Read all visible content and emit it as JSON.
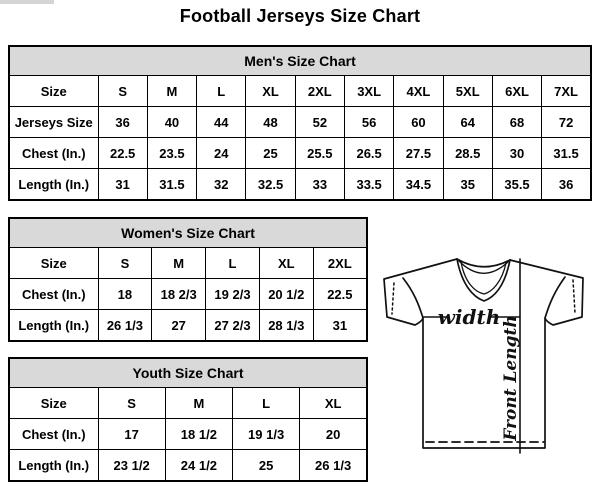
{
  "title": "Football Jerseys Size Chart",
  "tables": {
    "men": {
      "title": "Men's Size Chart",
      "rows": [
        [
          "Size",
          "S",
          "M",
          "L",
          "XL",
          "2XL",
          "3XL",
          "4XL",
          "5XL",
          "6XL",
          "7XL"
        ],
        [
          "Jerseys Size",
          "36",
          "40",
          "44",
          "48",
          "52",
          "56",
          "60",
          "64",
          "68",
          "72"
        ],
        [
          "Chest (In.)",
          "22.5",
          "23.5",
          "24",
          "25",
          "25.5",
          "26.5",
          "27.5",
          "28.5",
          "30",
          "31.5"
        ],
        [
          "Length (In.)",
          "31",
          "31.5",
          "32",
          "32.5",
          "33",
          "33.5",
          "34.5",
          "35",
          "35.5",
          "36"
        ]
      ]
    },
    "women": {
      "title": "Women's Size Chart",
      "rows": [
        [
          "Size",
          "S",
          "M",
          "L",
          "XL",
          "2XL"
        ],
        [
          "Chest (In.)",
          "18",
          "18 2/3",
          "19 2/3",
          "20 1/2",
          "22.5"
        ],
        [
          "Length (In.)",
          "26 1/3",
          "27",
          "27 2/3",
          "28 1/3",
          "31"
        ]
      ]
    },
    "youth": {
      "title": "Youth Size Chart",
      "rows": [
        [
          "Size",
          "S",
          "M",
          "L",
          "XL"
        ],
        [
          "Chest (In.)",
          "17",
          "18 1/2",
          "19 1/3",
          "20"
        ],
        [
          "Length (In.)",
          "23 1/2",
          "24 1/2",
          "25",
          "26 1/3"
        ]
      ]
    }
  },
  "diagram": {
    "width_label": "width",
    "front_length_label": "Front Length"
  },
  "colors": {
    "header_bg": "#d9d9d9",
    "border": "#000000",
    "text": "#000000",
    "background": "#ffffff"
  }
}
